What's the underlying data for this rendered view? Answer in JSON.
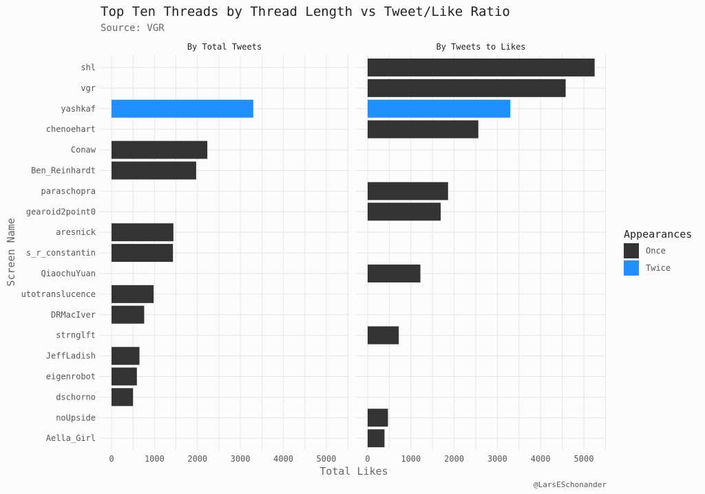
{
  "chart_data": {
    "type": "bar",
    "orientation": "horizontal",
    "title": "Top Ten Threads by Thread Length vs Tweet/Like Ratio",
    "subtitle": "Source: VGR",
    "caption": "@LarsESchonander",
    "xlabel": "Total Likes",
    "ylabel": "Screen Name",
    "xlim": [
      0,
      5500
    ],
    "xticks": [
      0,
      1000,
      2000,
      3000,
      4000,
      5000
    ],
    "grid": true,
    "categories": [
      "shl",
      "vgr",
      "yashkaf",
      "chenoehart",
      "Conaw",
      "Ben_Reinhardt",
      "paraschopra",
      "gearoid2point0",
      "aresnick",
      "s_r_constantin",
      "QiaochuYuan",
      "utotranslucence",
      "DRMacIver",
      "strnglft",
      "JeffLadish",
      "eigenrobot",
      "dschorno",
      "noUpside",
      "Aella_Girl"
    ],
    "legend": {
      "title": "Appearances",
      "position": "right",
      "entries": [
        {
          "label": "Once",
          "color": "#333333"
        },
        {
          "label": "Twice",
          "color": "#1e90ff"
        }
      ]
    },
    "facets": [
      {
        "label": "By Total Tweets",
        "bars": [
          {
            "category": "yashkaf",
            "value": 3300,
            "appearances": "Twice"
          },
          {
            "category": "Conaw",
            "value": 2230,
            "appearances": "Once"
          },
          {
            "category": "Ben_Reinhardt",
            "value": 1970,
            "appearances": "Once"
          },
          {
            "category": "aresnick",
            "value": 1440,
            "appearances": "Once"
          },
          {
            "category": "s_r_constantin",
            "value": 1430,
            "appearances": "Once"
          },
          {
            "category": "utotranslucence",
            "value": 980,
            "appearances": "Once"
          },
          {
            "category": "DRMacIver",
            "value": 760,
            "appearances": "Once"
          },
          {
            "category": "JeffLadish",
            "value": 650,
            "appearances": "Once"
          },
          {
            "category": "eigenrobot",
            "value": 590,
            "appearances": "Once"
          },
          {
            "category": "dschorno",
            "value": 500,
            "appearances": "Once"
          }
        ]
      },
      {
        "label": "By Tweets to Likes",
        "bars": [
          {
            "category": "shl",
            "value": 5250,
            "appearances": "Once"
          },
          {
            "category": "vgr",
            "value": 4580,
            "appearances": "Once"
          },
          {
            "category": "yashkaf",
            "value": 3300,
            "appearances": "Twice"
          },
          {
            "category": "chenoehart",
            "value": 2560,
            "appearances": "Once"
          },
          {
            "category": "paraschopra",
            "value": 1860,
            "appearances": "Once"
          },
          {
            "category": "gearoid2point0",
            "value": 1690,
            "appearances": "Once"
          },
          {
            "category": "QiaochuYuan",
            "value": 1220,
            "appearances": "Once"
          },
          {
            "category": "strnglft",
            "value": 720,
            "appearances": "Once"
          },
          {
            "category": "noUpside",
            "value": 470,
            "appearances": "Once"
          },
          {
            "category": "Aella_Girl",
            "value": 390,
            "appearances": "Once"
          }
        ]
      }
    ]
  }
}
